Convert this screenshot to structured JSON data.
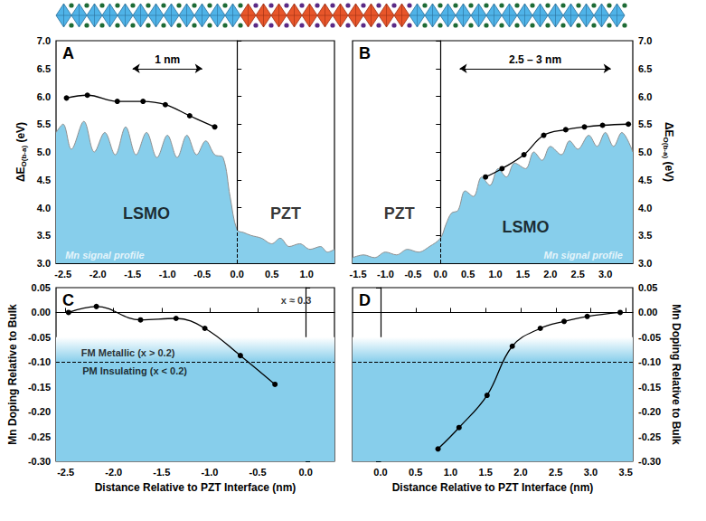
{
  "chart_data": [
    {
      "panel": "A",
      "type": "line",
      "xlim": [
        -2.6,
        1.4
      ],
      "xticks": [
        -2.5,
        {
          "value": -2,
          "label": "-2.0"
        },
        -1.5,
        {
          "value": -1,
          "label": "-1.0"
        },
        -0.5,
        {
          "value": 0,
          "label": "0.0"
        },
        0.5,
        {
          "value": 1,
          "label": "1.0"
        }
      ],
      "ylim": [
        3,
        7
      ],
      "yticks": [
        {
          "value": 3,
          "label": "3.0"
        },
        3.5,
        {
          "value": 4,
          "label": "4.0"
        },
        4.5,
        {
          "value": 5,
          "label": "5.0"
        },
        5.5,
        {
          "value": 6,
          "label": "6.0"
        },
        6.5,
        {
          "value": 7,
          "label": "7.0"
        }
      ],
      "y_label": {
        "text": "ΔE",
        "subscript": "O(b-a)",
        "unit": "(eV)"
      },
      "series": [
        {
          "type": "area",
          "name": "Mn signal profile",
          "color": "#87ceeb",
          "x": [
            -2.6,
            -2.5,
            -2.38,
            -2.2,
            -2.05,
            -1.9,
            -1.75,
            -1.6,
            -1.45,
            -1.3,
            -1.15,
            -1.0,
            -0.86,
            -0.72,
            -0.58,
            -0.45,
            -0.32,
            -0.2,
            -0.1,
            0,
            0.1,
            0.2,
            0.35,
            0.5,
            0.62,
            0.75,
            0.9,
            1.05,
            1.2,
            1.3,
            1.4
          ],
          "values": [
            5.35,
            5.5,
            5.05,
            5.55,
            5.0,
            5.35,
            4.95,
            5.45,
            4.95,
            5.35,
            4.9,
            5.3,
            4.9,
            5.3,
            4.95,
            5.2,
            4.95,
            4.9,
            4.2,
            3.6,
            3.55,
            3.5,
            3.45,
            3.35,
            3.45,
            3.3,
            3.35,
            3.25,
            3.3,
            3.2,
            3.25
          ]
        },
        {
          "type": "line",
          "color": "#000000",
          "marker": "circle",
          "x": [
            -2.45,
            -2.15,
            -1.72,
            -1.35,
            -1.03,
            -0.68,
            -0.32
          ],
          "values": [
            5.97,
            6.02,
            5.91,
            5.91,
            5.85,
            5.65,
            5.45
          ]
        }
      ],
      "vlines": [
        0
      ],
      "arrows": [
        {
          "text": "1 nm",
          "x": [
            -1.5,
            -0.5
          ],
          "y": 6.5
        }
      ],
      "annotations": [
        {
          "text": "LSMO",
          "x": -1.3,
          "y": 3.9
        },
        {
          "text": "PZT",
          "x": 0.7,
          "y": 3.9
        },
        {
          "text": "Mn signal profile",
          "x": -1.9,
          "y": 3.15
        }
      ]
    },
    {
      "panel": "B",
      "type": "line",
      "xlim": [
        -1.6,
        3.5
      ],
      "xticks": [
        -1.5,
        {
          "value": -1,
          "label": "-1.0"
        },
        -0.5,
        {
          "value": 0,
          "label": "0.0"
        },
        0.5,
        {
          "value": 1,
          "label": "1.0"
        },
        1.5,
        {
          "value": 2,
          "label": "2.0"
        },
        2.5,
        {
          "value": 3,
          "label": "3.0"
        }
      ],
      "ylim": [
        3,
        7
      ],
      "yticks": [
        {
          "value": 3,
          "label": "3.0"
        },
        3.5,
        {
          "value": 4,
          "label": "4.0"
        },
        4.5,
        {
          "value": 5,
          "label": "5.0"
        },
        5.5,
        {
          "value": 6,
          "label": "6.0"
        },
        6.5,
        {
          "value": 7,
          "label": "7.0"
        }
      ],
      "y_label": {
        "text": "ΔE",
        "subscript": "O(b-a)",
        "unit": "(eV)"
      },
      "series": [
        {
          "type": "area",
          "name": "Mn signal profile",
          "color": "#87ceeb",
          "x": [
            -1.6,
            -1.4,
            -1.2,
            -1.0,
            -0.8,
            -0.6,
            -0.4,
            -0.2,
            0,
            0.1,
            0.2,
            0.32,
            0.45,
            0.6,
            0.75,
            0.9,
            1.05,
            1.2,
            1.35,
            1.55,
            1.7,
            1.85,
            2.0,
            2.2,
            2.35,
            2.5,
            2.7,
            2.85,
            3.0,
            3.15,
            3.3,
            3.5
          ],
          "values": [
            3.1,
            3.15,
            3.1,
            3.2,
            3.15,
            3.25,
            3.2,
            3.3,
            3.45,
            3.7,
            3.9,
            3.95,
            4.3,
            4.2,
            4.55,
            4.4,
            4.7,
            4.55,
            4.8,
            4.7,
            5.0,
            4.85,
            5.1,
            4.95,
            5.2,
            5.05,
            5.3,
            5.1,
            5.35,
            5.1,
            5.35,
            5.0
          ]
        },
        {
          "type": "line",
          "color": "#000000",
          "marker": "circle",
          "x": [
            0.82,
            1.12,
            1.52,
            1.88,
            2.28,
            2.62,
            2.95,
            3.42
          ],
          "values": [
            4.55,
            4.7,
            4.95,
            5.3,
            5.4,
            5.45,
            5.48,
            5.5
          ]
        }
      ],
      "vlines": [
        0
      ],
      "arrows": [
        {
          "text": "2.5 – 3 nm",
          "x": [
            0.35,
            3.1
          ],
          "y": 6.5
        }
      ],
      "annotations": [
        {
          "text": "PZT",
          "x": -0.75,
          "y": 3.9
        },
        {
          "text": "LSMO",
          "x": 1.55,
          "y": 3.65
        },
        {
          "text": "Mn signal profile",
          "x": 2.6,
          "y": 3.15
        }
      ]
    },
    {
      "panel": "C",
      "type": "line",
      "xlim": [
        -2.6,
        0.3
      ],
      "xticks": [
        -2.5,
        {
          "value": -2,
          "label": "-2.0"
        },
        -1.5,
        {
          "value": -1,
          "label": "-1.0"
        },
        -0.5,
        {
          "value": 0,
          "label": "0.0"
        }
      ],
      "x_label": "Distance Relative to PZT Interface (nm)",
      "ylim": [
        -0.3,
        0.05
      ],
      "yticks": [
        {
          "value": -0.3,
          "label": "-0.30"
        },
        -0.25,
        {
          "value": -0.2,
          "label": "-0.20"
        },
        -0.15,
        {
          "value": -0.1,
          "label": "-0.10"
        },
        -0.05,
        {
          "value": 0,
          "label": "0.00"
        },
        0.05
      ],
      "y_label": "Mn Doping Relative to Bulk",
      "series": [
        {
          "type": "line",
          "color": "#000000",
          "marker": "circle",
          "x": [
            -2.47,
            -2.18,
            -1.72,
            -1.35,
            -1.05,
            -0.68,
            -0.32
          ],
          "values": [
            0,
            0.012,
            -0.015,
            -0.012,
            -0.032,
            -0.087,
            -0.145
          ]
        }
      ],
      "hlines": [
        0,
        -0.1
      ],
      "regions": [
        {
          "from": -0.3,
          "to": -0.1,
          "color": "#87ceeb"
        }
      ],
      "annotations": [
        {
          "text": "x ≈ 0.3",
          "x": -0.1,
          "y": 0.025
        },
        {
          "text": "FM Metallic (x > 0.2)",
          "x": -1.85,
          "y": -0.082
        },
        {
          "text": "PM Insulating (x < 0.2)",
          "x": -1.78,
          "y": -0.118
        }
      ]
    },
    {
      "panel": "D",
      "type": "line",
      "xlim": [
        -0.4,
        3.6
      ],
      "xticks": [
        {
          "value": 0,
          "label": "0.0"
        },
        0.5,
        {
          "value": 1,
          "label": "1.0"
        },
        1.5,
        {
          "value": 2,
          "label": "2.0"
        },
        2.5,
        {
          "value": 3,
          "label": "3.0"
        },
        3.5
      ],
      "x_label": "Distance Relative to PZT Interface (nm)",
      "ylim": [
        -0.3,
        0.05
      ],
      "yticks": [
        {
          "value": -0.3,
          "label": "-0.30"
        },
        -0.25,
        {
          "value": -0.2,
          "label": "-0.20"
        },
        -0.15,
        {
          "value": -0.1,
          "label": "-0.10"
        },
        -0.05,
        {
          "value": 0,
          "label": "0.00"
        },
        0.05
      ],
      "y_label": "Mn Doping Relative to Bulk",
      "series": [
        {
          "type": "line",
          "color": "#000000",
          "marker": "circle",
          "x": [
            0.82,
            1.12,
            1.52,
            1.88,
            2.28,
            2.62,
            2.95,
            3.42
          ],
          "values": [
            -0.275,
            -0.232,
            -0.167,
            -0.068,
            -0.032,
            -0.018,
            -0.008,
            0
          ]
        }
      ],
      "hlines": [
        0,
        -0.1
      ],
      "regions": [
        {
          "from": -0.3,
          "to": -0.1,
          "color": "#87ceeb"
        }
      ],
      "annotations": []
    }
  ]
}
